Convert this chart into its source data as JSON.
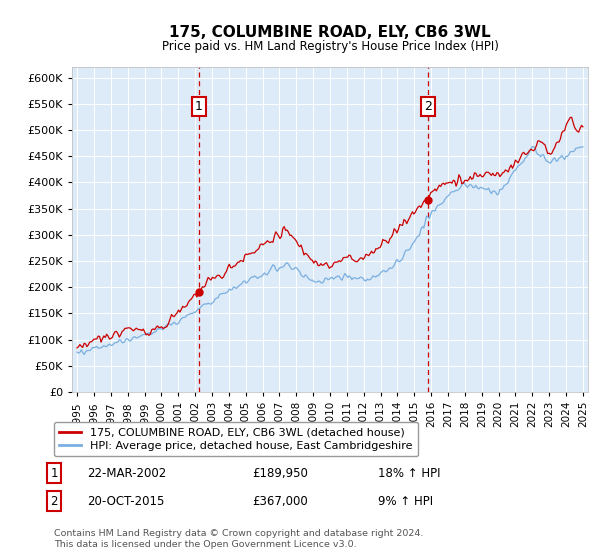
{
  "title": "175, COLUMBINE ROAD, ELY, CB6 3WL",
  "subtitle": "Price paid vs. HM Land Registry's House Price Index (HPI)",
  "ylim": [
    0,
    620000
  ],
  "yticks": [
    0,
    50000,
    100000,
    150000,
    200000,
    250000,
    300000,
    350000,
    400000,
    450000,
    500000,
    550000,
    600000
  ],
  "xlim_start": 1994.7,
  "xlim_end": 2025.3,
  "xticks": [
    1995,
    1996,
    1997,
    1998,
    1999,
    2000,
    2001,
    2002,
    2003,
    2004,
    2005,
    2006,
    2007,
    2008,
    2009,
    2010,
    2011,
    2012,
    2013,
    2014,
    2015,
    2016,
    2017,
    2018,
    2019,
    2020,
    2021,
    2022,
    2023,
    2024,
    2025
  ],
  "sale1_x": 2002.23,
  "sale1_y": 189950,
  "sale2_x": 2015.8,
  "sale2_y": 367000,
  "line1_color": "#cc0000",
  "line2_color": "#7aafe0",
  "bg_color": "#ddeaf7",
  "grid_color": "#ffffff",
  "legend1": "175, COLUMBINE ROAD, ELY, CB6 3WL (detached house)",
  "legend2": "HPI: Average price, detached house, East Cambridgeshire",
  "sale1_date": "22-MAR-2002",
  "sale1_price": "£189,950",
  "sale1_hpi": "18% ↑ HPI",
  "sale2_date": "20-OCT-2015",
  "sale2_price": "£367,000",
  "sale2_hpi": "9% ↑ HPI",
  "footnote": "Contains HM Land Registry data © Crown copyright and database right 2024.\nThis data is licensed under the Open Government Licence v3.0."
}
